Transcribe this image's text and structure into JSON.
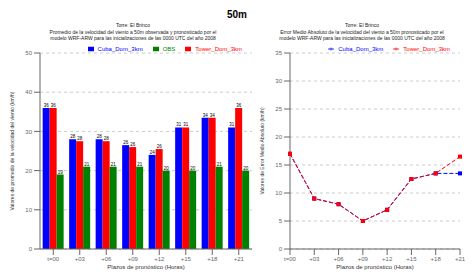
{
  "title": "50m",
  "chart_data": [
    {
      "type": "bar",
      "title": "Torre: El Brinco",
      "subtitle": "Promedio de la velocidad del viento a 50m observada y pronosticado por el\nmodelo WRF-ARW para las inicializaciones de las 0000 UTC del año 2008",
      "categories": [
        "t=00",
        "+03",
        "+06",
        "+09",
        "+12",
        "+15",
        "+18",
        "+21"
      ],
      "series": [
        {
          "name": "Cuba_Dom_3km",
          "color": "#0000FF",
          "values": [
            36.0,
            28.0,
            28.0,
            26.5,
            24.0,
            31.0,
            33.5,
            31.0
          ],
          "value_labels": [
            "36",
            "28",
            "28",
            "26",
            "24",
            "31",
            "34",
            "31"
          ]
        },
        {
          "name": "Tower_Dom_3km",
          "color": "#FF0000",
          "values": [
            36.0,
            27.5,
            27.5,
            26.0,
            25.5,
            31.0,
            33.5,
            36.0
          ],
          "value_labels": [
            "36",
            "28",
            "28",
            "26",
            "26",
            "31",
            "34",
            "36"
          ]
        },
        {
          "name": "OBS",
          "color": "#008000",
          "values": [
            19.0,
            21.0,
            21.0,
            21.0,
            20.0,
            20.0,
            21.0,
            20.0
          ]
        }
      ],
      "x_label": "Plazos de pronóstico (Horas)",
      "y_label": "Valores de promedio de la velocidad del viento (km/h)",
      "ylim": [
        0,
        50
      ],
      "yticks": [
        0,
        10,
        20,
        30,
        40,
        50
      ],
      "grid": true,
      "legend": "upper right",
      "data_labels": true
    },
    {
      "type": "line",
      "title": "Torre: El Brinco",
      "subtitle": "Error Medio Absoluto de la velocidad del viento a 50m pronosticado por el\nmodelo WRF-ARW para las inicializaciones de las 0000 UTC del año 2008",
      "categories": [
        "t=00",
        "+03",
        "+06",
        "+09",
        "+12",
        "+15",
        "+18",
        "+21"
      ],
      "series": [
        {
          "name": "Cuba_Dom_3km",
          "color": "#0000FF",
          "values": [
            17.0,
            9.0,
            8.0,
            5.0,
            7.0,
            12.5,
            13.5,
            13.5
          ],
          "marker": "square",
          "line_style": "dashed"
        },
        {
          "name": "Tower_Dom_3km",
          "color": "#FF0000",
          "values": [
            17.0,
            9.0,
            8.0,
            5.0,
            7.0,
            12.5,
            13.5,
            16.5
          ],
          "marker": "square",
          "line_style": "dashed"
        }
      ],
      "x_label": "Plazos de pronóstico (Horas)",
      "y_label": "Valores de Error Medio Absoluto (km/h)",
      "ylim": [
        0,
        35
      ],
      "yticks": [
        0,
        5,
        10,
        15,
        20,
        25,
        30,
        35
      ],
      "grid": true,
      "legend": "upper right"
    }
  ]
}
